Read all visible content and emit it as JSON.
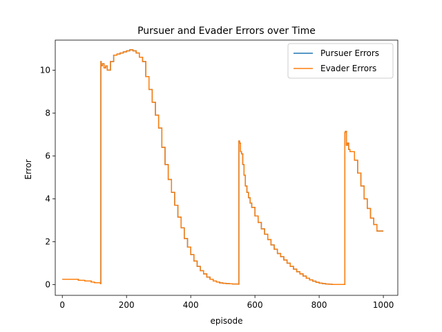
{
  "chart_data": {
    "type": "line",
    "title": "Pursuer and Evader Errors over Time",
    "xlabel": "episode",
    "ylabel": "Error",
    "xlim": [
      -22,
      1045
    ],
    "ylim": [
      -0.5,
      11.4
    ],
    "xticks": [
      0,
      200,
      400,
      600,
      800,
      1000
    ],
    "yticks": [
      0,
      2,
      4,
      6,
      8,
      10
    ],
    "grid": false,
    "legend_position": "top-right",
    "series": [
      {
        "name": "Pursuer Errors",
        "color": "#1f77b4",
        "x": [
          0,
          40,
          50,
          70,
          90,
          100,
          119,
          120,
          121,
          125,
          130,
          135,
          140,
          150,
          160,
          170,
          180,
          190,
          200,
          210,
          220,
          230,
          240,
          250,
          260,
          270,
          280,
          290,
          300,
          310,
          320,
          330,
          340,
          350,
          360,
          370,
          380,
          390,
          400,
          410,
          420,
          430,
          440,
          450,
          460,
          470,
          480,
          490,
          500,
          510,
          520,
          530,
          549,
          550,
          552,
          555,
          558,
          562,
          566,
          570,
          575,
          580,
          585,
          590,
          600,
          610,
          620,
          630,
          640,
          650,
          660,
          670,
          680,
          690,
          700,
          710,
          720,
          730,
          740,
          750,
          760,
          770,
          780,
          790,
          800,
          810,
          820,
          830,
          840,
          850,
          860,
          870,
          879,
          880,
          882,
          885,
          888,
          892,
          896,
          900,
          910,
          920,
          930,
          940,
          950,
          960,
          970,
          980,
          990,
          1000
        ],
        "y": [
          0.25,
          0.25,
          0.2,
          0.17,
          0.12,
          0.09,
          0.05,
          10.4,
          10.2,
          10.3,
          10.1,
          10.2,
          10.0,
          10.4,
          10.7,
          10.75,
          10.8,
          10.85,
          10.9,
          10.95,
          10.9,
          10.8,
          10.6,
          10.4,
          9.7,
          9.1,
          8.5,
          7.9,
          7.3,
          6.4,
          5.6,
          4.9,
          4.3,
          3.7,
          3.15,
          2.65,
          2.15,
          1.75,
          1.4,
          1.1,
          0.85,
          0.65,
          0.5,
          0.35,
          0.25,
          0.17,
          0.12,
          0.08,
          0.06,
          0.05,
          0.04,
          0.03,
          0.02,
          6.7,
          6.6,
          6.2,
          6.1,
          5.6,
          5.1,
          4.6,
          4.3,
          4.05,
          3.8,
          3.6,
          3.2,
          2.9,
          2.6,
          2.35,
          2.1,
          1.85,
          1.65,
          1.45,
          1.3,
          1.15,
          1.0,
          0.85,
          0.72,
          0.6,
          0.5,
          0.4,
          0.3,
          0.22,
          0.16,
          0.11,
          0.07,
          0.05,
          0.03,
          0.02,
          0.01,
          0.01,
          0.01,
          0.01,
          0.01,
          7.1,
          7.15,
          6.5,
          6.6,
          6.3,
          6.2,
          6.2,
          5.8,
          5.2,
          4.6,
          4.0,
          3.55,
          3.1,
          2.8,
          2.5,
          2.5,
          2.5
        ]
      },
      {
        "name": "Evader Errors",
        "color": "#ff7f0e",
        "x": [
          0,
          40,
          50,
          70,
          90,
          100,
          119,
          120,
          121,
          125,
          130,
          135,
          140,
          150,
          160,
          170,
          180,
          190,
          200,
          210,
          220,
          230,
          240,
          250,
          260,
          270,
          280,
          290,
          300,
          310,
          320,
          330,
          340,
          350,
          360,
          370,
          380,
          390,
          400,
          410,
          420,
          430,
          440,
          450,
          460,
          470,
          480,
          490,
          500,
          510,
          520,
          530,
          549,
          550,
          552,
          555,
          558,
          562,
          566,
          570,
          575,
          580,
          585,
          590,
          600,
          610,
          620,
          630,
          640,
          650,
          660,
          670,
          680,
          690,
          700,
          710,
          720,
          730,
          740,
          750,
          760,
          770,
          780,
          790,
          800,
          810,
          820,
          830,
          840,
          850,
          860,
          870,
          879,
          880,
          882,
          885,
          888,
          892,
          896,
          900,
          910,
          920,
          930,
          940,
          950,
          960,
          970,
          980,
          990,
          1000
        ],
        "y": [
          0.25,
          0.25,
          0.2,
          0.17,
          0.12,
          0.09,
          0.05,
          10.4,
          10.2,
          10.3,
          10.1,
          10.2,
          10.0,
          10.4,
          10.7,
          10.75,
          10.8,
          10.85,
          10.9,
          10.95,
          10.9,
          10.8,
          10.6,
          10.4,
          9.7,
          9.1,
          8.5,
          7.9,
          7.3,
          6.4,
          5.6,
          4.9,
          4.3,
          3.7,
          3.15,
          2.65,
          2.15,
          1.75,
          1.4,
          1.1,
          0.85,
          0.65,
          0.5,
          0.35,
          0.25,
          0.17,
          0.12,
          0.08,
          0.06,
          0.05,
          0.04,
          0.03,
          0.02,
          6.7,
          6.6,
          6.2,
          6.1,
          5.6,
          5.1,
          4.6,
          4.3,
          4.05,
          3.8,
          3.6,
          3.2,
          2.9,
          2.6,
          2.35,
          2.1,
          1.85,
          1.65,
          1.45,
          1.3,
          1.15,
          1.0,
          0.85,
          0.72,
          0.6,
          0.5,
          0.4,
          0.3,
          0.22,
          0.16,
          0.11,
          0.07,
          0.05,
          0.03,
          0.02,
          0.01,
          0.01,
          0.01,
          0.01,
          0.01,
          7.1,
          7.15,
          6.5,
          6.6,
          6.3,
          6.2,
          6.2,
          5.8,
          5.2,
          4.6,
          4.0,
          3.55,
          3.1,
          2.8,
          2.5,
          2.5,
          2.5
        ]
      }
    ]
  }
}
